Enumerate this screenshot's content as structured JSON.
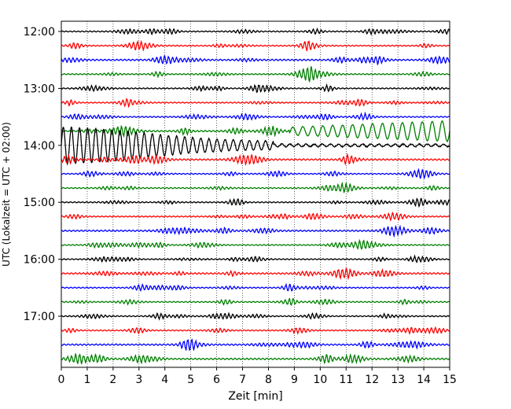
{
  "chart_data": {
    "type": "line",
    "title": "",
    "xlabel": "Zeit  [min]",
    "ylabel": "UTC (Lokalzeit = UTC + 02:00)",
    "xlim": [
      0,
      15
    ],
    "x_ticks": [
      "0",
      "1",
      "2",
      "3",
      "4",
      "5",
      "6",
      "7",
      "8",
      "9",
      "10",
      "11",
      "12",
      "13",
      "14",
      "15"
    ],
    "y_ticks": [
      "12:00",
      "13:00",
      "14:00",
      "15:00",
      "16:00",
      "17:00"
    ],
    "grid": true,
    "trace_interval_minutes": 15,
    "trace_colors": [
      "#000000",
      "#ff0000",
      "#0000ff",
      "#008000"
    ],
    "series": [
      {
        "start": "12:00",
        "color": "#000000",
        "amplitude": 0.15
      },
      {
        "start": "12:15",
        "color": "#ff0000",
        "amplitude": 0.15
      },
      {
        "start": "12:30",
        "color": "#0000ff",
        "amplitude": 0.2
      },
      {
        "start": "12:45",
        "color": "#008000",
        "amplitude": 0.15
      },
      {
        "start": "13:00",
        "color": "#000000",
        "amplitude": 0.15
      },
      {
        "start": "13:15",
        "color": "#ff0000",
        "amplitude": 0.15
      },
      {
        "start": "13:30",
        "color": "#0000ff",
        "amplitude": 0.15
      },
      {
        "start": "13:45",
        "color": "#008000",
        "amplitude": 0.2,
        "event": "teleseismic onset ~8.8 min, growing to 15 min, peak amplitude ~1.0"
      },
      {
        "start": "14:00",
        "color": "#000000",
        "amplitude": 0.3,
        "event": "large oscillations 0-8 min, peak amplitude ~1.3"
      },
      {
        "start": "14:15",
        "color": "#ff0000",
        "amplitude": 0.2
      },
      {
        "start": "14:30",
        "color": "#0000ff",
        "amplitude": 0.15
      },
      {
        "start": "14:45",
        "color": "#008000",
        "amplitude": 0.15
      },
      {
        "start": "15:00",
        "color": "#000000",
        "amplitude": 0.15
      },
      {
        "start": "15:15",
        "color": "#ff0000",
        "amplitude": 0.15
      },
      {
        "start": "15:30",
        "color": "#0000ff",
        "amplitude": 0.2
      },
      {
        "start": "15:45",
        "color": "#008000",
        "amplitude": 0.15
      },
      {
        "start": "16:00",
        "color": "#000000",
        "amplitude": 0.15
      },
      {
        "start": "16:15",
        "color": "#ff0000",
        "amplitude": 0.2
      },
      {
        "start": "16:30",
        "color": "#0000ff",
        "amplitude": 0.15
      },
      {
        "start": "16:45",
        "color": "#008000",
        "amplitude": 0.15
      },
      {
        "start": "17:00",
        "color": "#000000",
        "amplitude": 0.15
      },
      {
        "start": "17:15",
        "color": "#ff0000",
        "amplitude": 0.15
      },
      {
        "start": "17:30",
        "color": "#0000ff",
        "amplitude": 0.2
      },
      {
        "start": "17:45",
        "color": "#008000",
        "amplitude": 0.2
      }
    ]
  }
}
